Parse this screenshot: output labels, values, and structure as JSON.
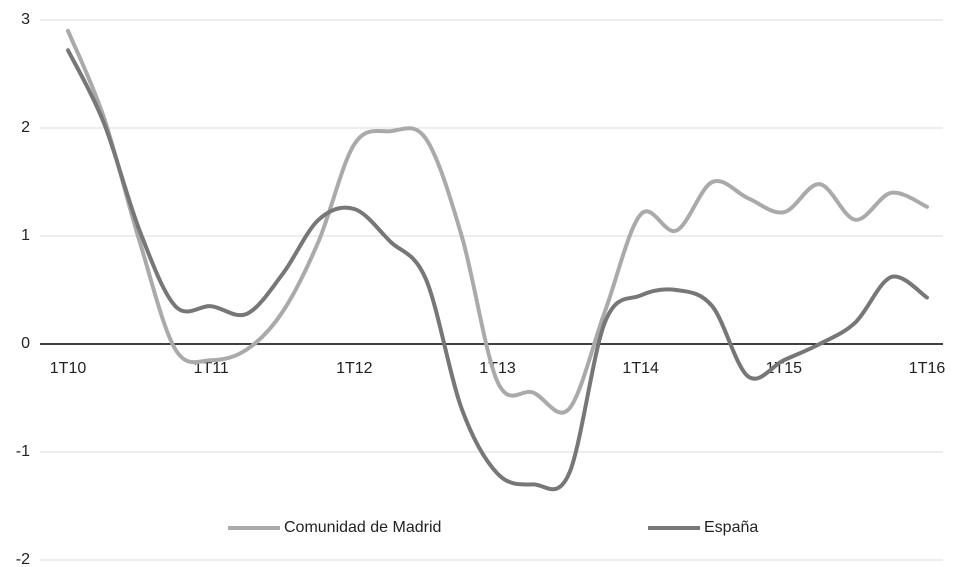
{
  "chart_data": {
    "type": "line",
    "categories": [
      "1T10",
      null,
      null,
      null,
      "1T11",
      null,
      null,
      null,
      "1T12",
      null,
      null,
      null,
      "1T13",
      null,
      null,
      null,
      "1T14",
      null,
      null,
      null,
      "1T15",
      null,
      null,
      null,
      "1T16"
    ],
    "series": [
      {
        "name": "Comunidad de Madrid",
        "color": "#aaaaaa",
        "values": [
          2.9,
          2.1,
          0.95,
          -0.05,
          -0.15,
          -0.05,
          0.3,
          0.95,
          1.85,
          1.97,
          1.9,
          1.0,
          -0.35,
          -0.45,
          -0.6,
          0.3,
          1.2,
          1.05,
          1.5,
          1.35,
          1.22,
          1.48,
          1.15,
          1.4,
          1.27
        ]
      },
      {
        "name": "España",
        "color": "#777777",
        "values": [
          2.72,
          2.05,
          1.05,
          0.35,
          0.35,
          0.28,
          0.65,
          1.15,
          1.25,
          0.95,
          0.6,
          -0.6,
          -1.2,
          -1.3,
          -1.2,
          0.2,
          0.45,
          0.5,
          0.35,
          -0.3,
          -0.15,
          0.0,
          0.2,
          0.62,
          0.43
        ]
      }
    ],
    "ylim": [
      -2,
      3
    ],
    "yticks": [
      -2,
      -1,
      0,
      1,
      2,
      3
    ],
    "grid": true,
    "legend": "bottom"
  }
}
